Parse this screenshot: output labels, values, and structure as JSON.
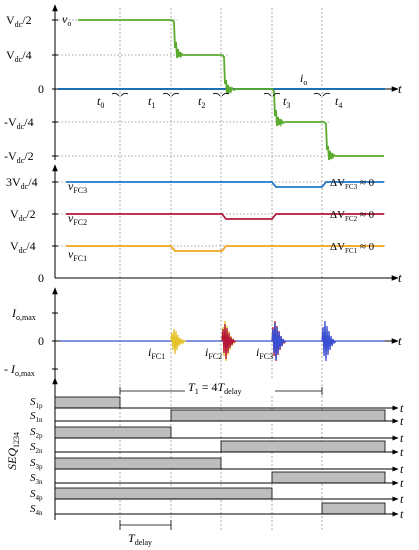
{
  "panel_v": {
    "ylabels": [
      "V",
      "dc",
      "/2",
      "V",
      "dc",
      "/4",
      "0",
      "-V",
      "dc",
      "/4",
      "-V",
      "dc",
      "/2"
    ],
    "signal_vo": [
      "v",
      "o"
    ],
    "signal_io": [
      "i",
      "o"
    ],
    "axis_t": "t",
    "time_marks": [
      [
        "t",
        "0"
      ],
      [
        "t",
        "1"
      ],
      [
        "t",
        "2"
      ],
      [
        "t",
        "3"
      ],
      [
        "t",
        "4"
      ]
    ]
  },
  "panel_fc": {
    "ylabels": [
      [
        "3V",
        "dc",
        "/4"
      ],
      [
        "V",
        "dc",
        "/2"
      ],
      [
        "V",
        "dc",
        "/4"
      ],
      "0"
    ],
    "series": [
      [
        "v",
        "FC3"
      ],
      [
        "v",
        "FC2"
      ],
      [
        "v",
        "FC1"
      ]
    ],
    "deltas": [
      [
        "ΔV",
        "FC3",
        " ≈ 0"
      ],
      [
        "ΔV",
        "FC2",
        " ≈ 0"
      ],
      [
        "ΔV",
        "FC1",
        " ≈ 0"
      ]
    ],
    "axis_t": "t"
  },
  "panel_i": {
    "ylabels": [
      [
        "I",
        "o,max"
      ],
      "0",
      [
        "- I",
        "o,max"
      ]
    ],
    "series": [
      [
        "i",
        "FC1"
      ],
      [
        "i",
        "FC2"
      ],
      [
        "i",
        "FC3"
      ]
    ],
    "axis_t": "t"
  },
  "panel_seq": {
    "rows": [
      [
        "S",
        "1p"
      ],
      [
        "S",
        "1n"
      ],
      [
        "S",
        "2p"
      ],
      [
        "S",
        "2n"
      ],
      [
        "S",
        "3p"
      ],
      [
        "S",
        "3n"
      ],
      [
        "S",
        "4p"
      ],
      [
        "S",
        "4n"
      ]
    ],
    "axis_t": "t",
    "vertical_label": [
      "SEQ",
      "1234"
    ],
    "period_label": [
      "T",
      "1",
      " = 4",
      "T",
      "delay"
    ],
    "delay_label": [
      "T",
      "delay"
    ]
  },
  "colors": {
    "vo": "#5aab2e",
    "io": "#1f6fb5",
    "fc3": "#1f78c8",
    "fc2": "#b5173a",
    "fc1": "#f0a41e",
    "ifc1": "#e6c229",
    "ifc2": "#b5173a",
    "ifc3": "#3a4fd1",
    "gate_fill": "#bdbdbd"
  }
}
